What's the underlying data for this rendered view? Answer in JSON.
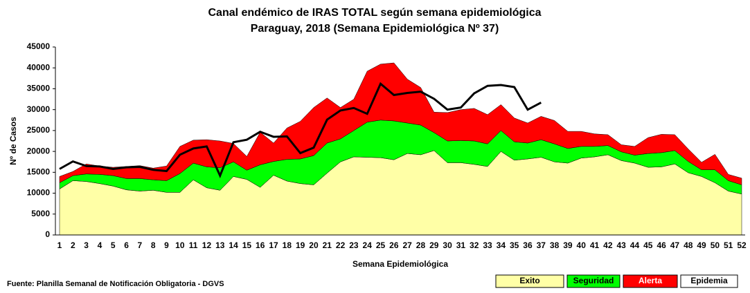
{
  "chart_data": {
    "type": "stacked_area_line",
    "title": "Canal endémico de IRAS  TOTAL según semana epidemiológica",
    "subtitle": "Paraguay, 2018 (Semana Epidemiológica Nº 37)",
    "x_label": "Semana Epidemiológica",
    "y_label": "Nº de Casos",
    "source": "Fuente: Planilla  Semanal de Notificación   Obligatoria  - DGVS",
    "categories": [
      1,
      2,
      3,
      4,
      5,
      6,
      7,
      8,
      9,
      10,
      11,
      12,
      13,
      14,
      15,
      16,
      17,
      18,
      19,
      20,
      21,
      22,
      23,
      24,
      25,
      26,
      27,
      28,
      29,
      30,
      31,
      32,
      33,
      34,
      35,
      36,
      37,
      38,
      39,
      40,
      41,
      42,
      43,
      44,
      45,
      46,
      47,
      48,
      49,
      50,
      51,
      52
    ],
    "series": [
      {
        "name": "Exito",
        "color": "#ffffa6",
        "kind": "area",
        "values": [
          11000,
          13000,
          12800,
          12300,
          11700,
          10800,
          10500,
          10700,
          10200,
          10200,
          13200,
          11300,
          10700,
          14000,
          13300,
          11400,
          14300,
          12900,
          12300,
          12000,
          14800,
          17500,
          18700,
          18600,
          18500,
          18000,
          19500,
          19200,
          20200,
          17300,
          17300,
          16900,
          16400,
          20000,
          17900,
          18200,
          18600,
          17500,
          17200,
          18400,
          18700,
          19200,
          17800,
          17200,
          16200,
          16300,
          17000,
          14900,
          14000,
          12500,
          10500,
          9800
        ]
      },
      {
        "name": "Seguridad",
        "color": "#00ff00",
        "kind": "area",
        "values": [
          1500,
          1200,
          1800,
          2200,
          2500,
          2700,
          3000,
          2500,
          2800,
          4500,
          4000,
          5000,
          5400,
          3500,
          2200,
          5400,
          3300,
          5200,
          5900,
          7000,
          7200,
          5500,
          6300,
          8400,
          9000,
          9300,
          7300,
          7100,
          4300,
          5200,
          5300,
          5600,
          5400,
          5000,
          4400,
          3800,
          4200,
          4300,
          3500,
          2800,
          2500,
          2200,
          2100,
          1900,
          3300,
          3400,
          3200,
          2700,
          1600,
          3100,
          2500,
          2200
        ]
      },
      {
        "name": "Alerta",
        "color": "#ff0000",
        "kind": "area",
        "values": [
          1500,
          1000,
          2400,
          2000,
          2000,
          2900,
          3100,
          2800,
          3500,
          6500,
          5500,
          6500,
          6400,
          4400,
          3300,
          7800,
          4400,
          7500,
          9000,
          11500,
          10800,
          7500,
          7500,
          12200,
          13400,
          13900,
          10500,
          9000,
          4900,
          6800,
          7400,
          7800,
          7000,
          6200,
          5700,
          4800,
          5600,
          5600,
          4100,
          3600,
          3000,
          2600,
          1700,
          2100,
          3800,
          4400,
          3800,
          3000,
          1800,
          3700,
          1500,
          1600
        ]
      },
      {
        "color": "#000000",
        "kind": "line",
        "values": [
          15800,
          17600,
          16500,
          16400,
          15800,
          16200,
          16300,
          15600,
          15300,
          19200,
          20700,
          21200,
          14200,
          22200,
          22800,
          24700,
          23500,
          23600,
          19600,
          20900,
          27600,
          29800,
          30400,
          29000,
          36200,
          33500,
          34000,
          34300,
          32600,
          30000,
          30500,
          33900,
          35700,
          35900,
          35400,
          30000,
          31700,
          null,
          null,
          null,
          null,
          null,
          null,
          null,
          null,
          null,
          null,
          null,
          null,
          null,
          null,
          null
        ]
      }
    ],
    "legend_extra": {
      "name": "Epidemia",
      "color": "#ffffff"
    },
    "ylim": [
      0,
      45000
    ],
    "yticks": [
      0,
      5000,
      10000,
      15000,
      20000,
      25000,
      30000,
      35000,
      40000,
      45000
    ]
  }
}
